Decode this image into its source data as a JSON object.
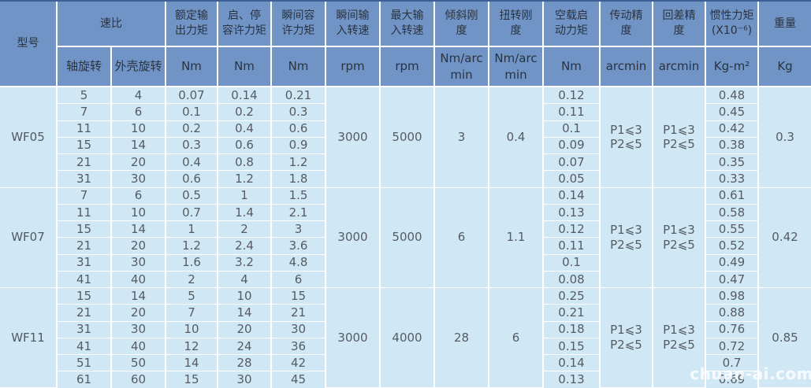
{
  "watermark": "chuan-ai.com",
  "colors": {
    "header_bg": "#7094c6",
    "body_bg": "#d0e8f6",
    "grid_line": "#ffffff",
    "header_text": "#2a333f",
    "body_text": "#555b62",
    "top_border": "#3d5f96"
  },
  "header": {
    "model": "型号",
    "ratio_group": "速比",
    "ratio_sub": [
      "轴旋转",
      "外壳旋转"
    ],
    "cols": [
      {
        "title": "额定输\n出力矩",
        "unit": "Nm"
      },
      {
        "title": "启、停\n容许力矩",
        "unit": "Nm"
      },
      {
        "title": "瞬间容\n许力矩",
        "unit": "Nm"
      },
      {
        "title": "瞬间输\n入转速",
        "unit": "rpm"
      },
      {
        "title": "最大输\n入转速",
        "unit": "rpm"
      },
      {
        "title": "倾斜刚\n度",
        "unit": "Nm/arc\nmin"
      },
      {
        "title": "扭转刚\n度",
        "unit": "Nm/arc\nmin"
      },
      {
        "title": "空载启\n动力矩",
        "unit": "Nm"
      },
      {
        "title": "传动精\n度",
        "unit": "arcmin"
      },
      {
        "title": "回差精\n度",
        "unit": "arcmin"
      },
      {
        "title": "惯性力矩\n(X10⁻⁶)",
        "unit": "Kg-m²"
      },
      {
        "title": "重量",
        "unit": "Kg"
      }
    ]
  },
  "sections": [
    {
      "model": "WF05",
      "merged": {
        "input_speed": "3000",
        "max_input_speed": "5000",
        "tilt_stiffness": "3",
        "torsional_stiffness": "0.4",
        "transmission_accuracy": "P1⩽3\nP2⩽5",
        "backlash_accuracy": "P1⩽3\nP2⩽5",
        "weight": "0.3"
      },
      "rows": [
        {
          "shaft": "5",
          "housing": "4",
          "rated": "0.07",
          "start_stop": "0.14",
          "instant": "0.21",
          "noload": "0.12",
          "inertia": "0.48"
        },
        {
          "shaft": "7",
          "housing": "6",
          "rated": "0.1",
          "start_stop": "0.2",
          "instant": "0.3",
          "noload": "0.11",
          "inertia": "0.45"
        },
        {
          "shaft": "11",
          "housing": "10",
          "rated": "0.2",
          "start_stop": "0.4",
          "instant": "0.6",
          "noload": "0.1",
          "inertia": "0.42"
        },
        {
          "shaft": "15",
          "housing": "14",
          "rated": "0.3",
          "start_stop": "0.6",
          "instant": "0.9",
          "noload": "0.09",
          "inertia": "0.38"
        },
        {
          "shaft": "21",
          "housing": "20",
          "rated": "0.4",
          "start_stop": "0.8",
          "instant": "1.2",
          "noload": "0.07",
          "inertia": "0.35"
        },
        {
          "shaft": "31",
          "housing": "30",
          "rated": "0.6",
          "start_stop": "1.2",
          "instant": "1.8",
          "noload": "0.05",
          "inertia": "0.33"
        }
      ]
    },
    {
      "model": "WF07",
      "merged": {
        "input_speed": "3000",
        "max_input_speed": "5000",
        "tilt_stiffness": "6",
        "torsional_stiffness": "1.1",
        "transmission_accuracy": "P1⩽3\nP2⩽5",
        "backlash_accuracy": "P1⩽3\nP2⩽5",
        "weight": "0.42"
      },
      "rows": [
        {
          "shaft": "7",
          "housing": "6",
          "rated": "0.5",
          "start_stop": "1",
          "instant": "1.5",
          "noload": "0.14",
          "inertia": "0.61"
        },
        {
          "shaft": "11",
          "housing": "10",
          "rated": "0.7",
          "start_stop": "1.4",
          "instant": "2.1",
          "noload": "0.13",
          "inertia": "0.58"
        },
        {
          "shaft": "15",
          "housing": "14",
          "rated": "1",
          "start_stop": "2",
          "instant": "3",
          "noload": "0.12",
          "inertia": "0.55"
        },
        {
          "shaft": "21",
          "housing": "20",
          "rated": "1.2",
          "start_stop": "2.4",
          "instant": "3.6",
          "noload": "0.11",
          "inertia": "0.52"
        },
        {
          "shaft": "31",
          "housing": "30",
          "rated": "1.6",
          "start_stop": "3.2",
          "instant": "4.8",
          "noload": "0.1",
          "inertia": "0.49"
        },
        {
          "shaft": "41",
          "housing": "40",
          "rated": "2",
          "start_stop": "4",
          "instant": "6",
          "noload": "0.08",
          "inertia": "0.47"
        }
      ]
    },
    {
      "model": "WF11",
      "merged": {
        "input_speed": "3000",
        "max_input_speed": "4000",
        "tilt_stiffness": "28",
        "torsional_stiffness": "6",
        "transmission_accuracy": "P1⩽3\nP2⩽5",
        "backlash_accuracy": "P1⩽3\nP2⩽5",
        "weight": "0.85"
      },
      "rows": [
        {
          "shaft": "15",
          "housing": "14",
          "rated": "5",
          "start_stop": "10",
          "instant": "15",
          "noload": "0.25",
          "inertia": "0.98"
        },
        {
          "shaft": "21",
          "housing": "20",
          "rated": "7",
          "start_stop": "14",
          "instant": "21",
          "noload": "0.21",
          "inertia": "0.88"
        },
        {
          "shaft": "31",
          "housing": "30",
          "rated": "10",
          "start_stop": "20",
          "instant": "30",
          "noload": "0.18",
          "inertia": "0.76"
        },
        {
          "shaft": "41",
          "housing": "40",
          "rated": "12",
          "start_stop": "24",
          "instant": "36",
          "noload": "0.15",
          "inertia": "0.72"
        },
        {
          "shaft": "51",
          "housing": "50",
          "rated": "14",
          "start_stop": "28",
          "instant": "42",
          "noload": "0.14",
          "inertia": "0.7"
        },
        {
          "shaft": "61",
          "housing": "60",
          "rated": "15",
          "start_stop": "30",
          "instant": "45",
          "noload": "0.13",
          "inertia": "0.69"
        }
      ]
    }
  ]
}
